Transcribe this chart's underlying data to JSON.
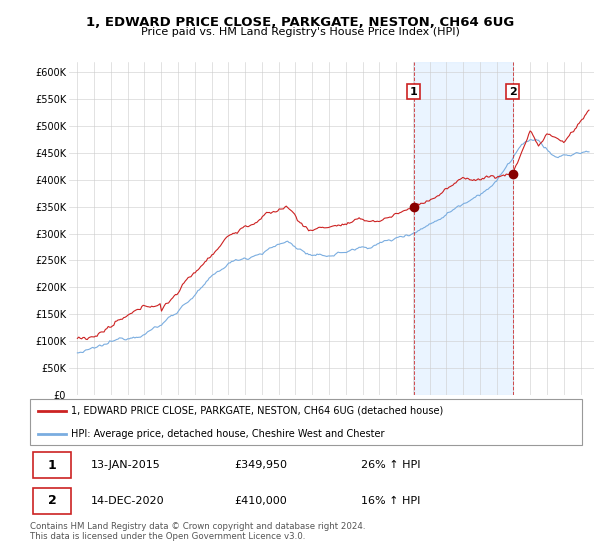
{
  "title": "1, EDWARD PRICE CLOSE, PARKGATE, NESTON, CH64 6UG",
  "subtitle": "Price paid vs. HM Land Registry's House Price Index (HPI)",
  "legend_line1": "1, EDWARD PRICE CLOSE, PARKGATE, NESTON, CH64 6UG (detached house)",
  "legend_line2": "HPI: Average price, detached house, Cheshire West and Chester",
  "footer1": "Contains HM Land Registry data © Crown copyright and database right 2024.",
  "footer2": "This data is licensed under the Open Government Licence v3.0.",
  "sale1_label": "1",
  "sale1_date": "13-JAN-2015",
  "sale1_price": "£349,950",
  "sale1_hpi": "26% ↑ HPI",
  "sale2_label": "2",
  "sale2_date": "14-DEC-2020",
  "sale2_price": "£410,000",
  "sale2_hpi": "16% ↑ HPI",
  "red_color": "#cc2222",
  "blue_color": "#7aade0",
  "blue_fill_color": "#ddeeff",
  "sale1_x": 2015.04,
  "sale1_y": 349950,
  "sale2_x": 2020.96,
  "sale2_y": 410000,
  "ylim_min": 0,
  "ylim_max": 620000,
  "xlim_min": 1994.5,
  "xlim_max": 2025.8,
  "yticks": [
    0,
    50000,
    100000,
    150000,
    200000,
    250000,
    300000,
    350000,
    400000,
    450000,
    500000,
    550000,
    600000
  ],
  "ytick_labels": [
    "£0",
    "£50K",
    "£100K",
    "£150K",
    "£200K",
    "£250K",
    "£300K",
    "£350K",
    "£400K",
    "£450K",
    "£500K",
    "£550K",
    "£600K"
  ],
  "xticks": [
    1995,
    1996,
    1997,
    1998,
    1999,
    2000,
    2001,
    2002,
    2003,
    2004,
    2005,
    2006,
    2007,
    2008,
    2009,
    2010,
    2011,
    2012,
    2013,
    2014,
    2015,
    2016,
    2017,
    2018,
    2019,
    2020,
    2021,
    2022,
    2023,
    2024,
    2025
  ]
}
